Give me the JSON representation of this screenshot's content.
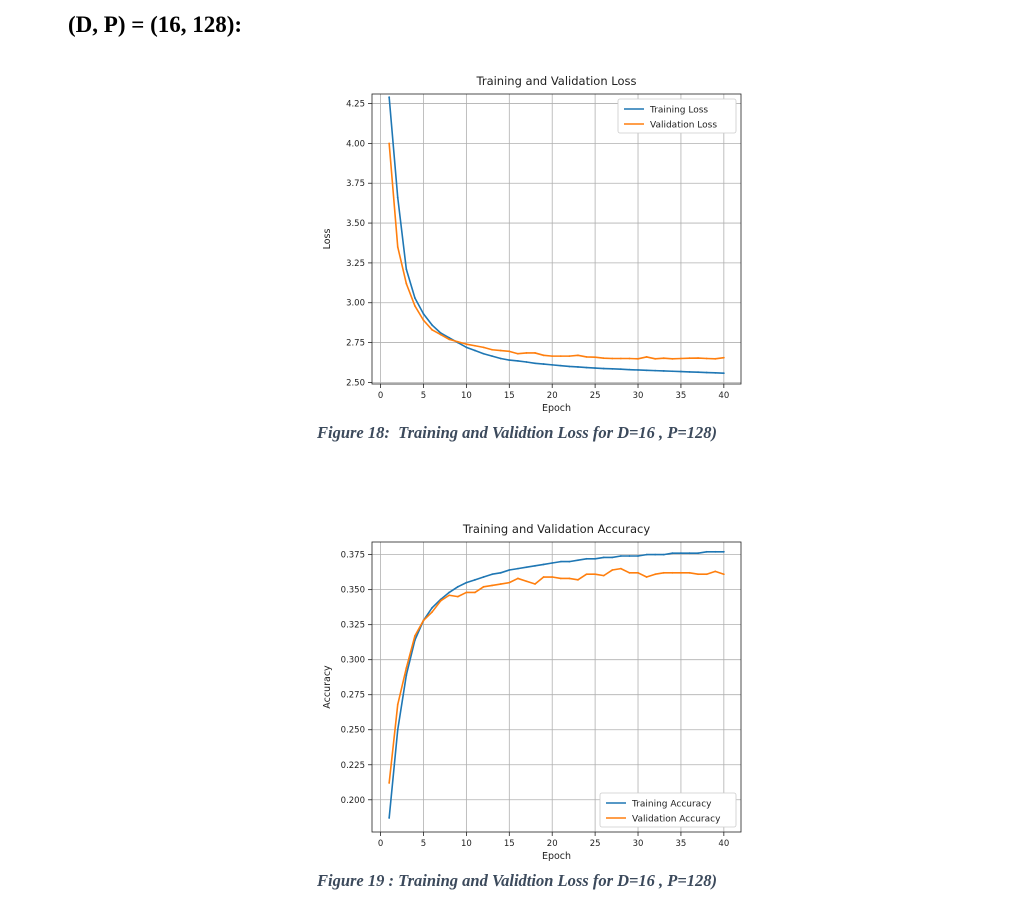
{
  "heading": "(D, P) = (16, 128):",
  "captions": {
    "fig18": "Figure 18:  Training and Validtion Loss for D=16 , P=128)",
    "fig19": "Figure 19 : Training and Validtion Loss for D=16 , P=128)"
  },
  "colors": {
    "train": "#1f77b4",
    "val": "#ff7f0e",
    "grid": "#b0b0b0"
  },
  "chart_data": [
    {
      "type": "line",
      "title": "Training and Validation Loss",
      "xlabel": "Epoch",
      "ylabel": "Loss",
      "xlim": [
        -1,
        42
      ],
      "ylim": [
        2.49,
        4.31
      ],
      "xticks": [
        0,
        5,
        10,
        15,
        20,
        25,
        30,
        35,
        40
      ],
      "xtick_labels": [
        "0",
        "5",
        "10",
        "15",
        "20",
        "25",
        "30",
        "35",
        "40"
      ],
      "yticks": [
        2.5,
        2.75,
        3.0,
        3.25,
        3.5,
        3.75,
        4.0,
        4.25
      ],
      "ytick_labels": [
        "2.50",
        "2.75",
        "3.00",
        "3.25",
        "3.50",
        "3.75",
        "4.00",
        "4.25"
      ],
      "grid": true,
      "legend_position": "top-right",
      "x": [
        1,
        2,
        3,
        4,
        5,
        6,
        7,
        8,
        9,
        10,
        11,
        12,
        13,
        14,
        15,
        16,
        17,
        18,
        19,
        20,
        21,
        22,
        23,
        24,
        25,
        26,
        27,
        28,
        29,
        30,
        31,
        32,
        33,
        34,
        35,
        36,
        37,
        38,
        39,
        40
      ],
      "series": [
        {
          "name": "Training Loss",
          "values": [
            4.29,
            3.66,
            3.21,
            3.03,
            2.93,
            2.86,
            2.81,
            2.78,
            2.75,
            2.72,
            2.7,
            2.68,
            2.665,
            2.65,
            2.64,
            2.635,
            2.628,
            2.62,
            2.615,
            2.61,
            2.605,
            2.6,
            2.597,
            2.593,
            2.59,
            2.587,
            2.585,
            2.583,
            2.58,
            2.578,
            2.576,
            2.574,
            2.572,
            2.57,
            2.568,
            2.566,
            2.564,
            2.562,
            2.56,
            2.558
          ]
        },
        {
          "name": "Validation Loss",
          "values": [
            4.0,
            3.35,
            3.12,
            2.98,
            2.89,
            2.83,
            2.8,
            2.77,
            2.755,
            2.74,
            2.73,
            2.72,
            2.705,
            2.7,
            2.695,
            2.68,
            2.685,
            2.685,
            2.67,
            2.665,
            2.665,
            2.665,
            2.67,
            2.66,
            2.658,
            2.652,
            2.65,
            2.65,
            2.65,
            2.648,
            2.66,
            2.648,
            2.652,
            2.648,
            2.65,
            2.652,
            2.653,
            2.65,
            2.648,
            2.655
          ]
        }
      ]
    },
    {
      "type": "line",
      "title": "Training and Validation Accuracy",
      "xlabel": "Epoch",
      "ylabel": "Accuracy",
      "xlim": [
        -1,
        42
      ],
      "ylim": [
        0.177,
        0.384
      ],
      "xticks": [
        0,
        5,
        10,
        15,
        20,
        25,
        30,
        35,
        40
      ],
      "xtick_labels": [
        "0",
        "5",
        "10",
        "15",
        "20",
        "25",
        "30",
        "35",
        "40"
      ],
      "yticks": [
        0.2,
        0.225,
        0.25,
        0.275,
        0.3,
        0.325,
        0.35,
        0.375
      ],
      "ytick_labels": [
        "0.200",
        "0.225",
        "0.250",
        "0.275",
        "0.300",
        "0.325",
        "0.350",
        "0.375"
      ],
      "grid": true,
      "legend_position": "bottom-right",
      "x": [
        1,
        2,
        3,
        4,
        5,
        6,
        7,
        8,
        9,
        10,
        11,
        12,
        13,
        14,
        15,
        16,
        17,
        18,
        19,
        20,
        21,
        22,
        23,
        24,
        25,
        26,
        27,
        28,
        29,
        30,
        31,
        32,
        33,
        34,
        35,
        36,
        37,
        38,
        39,
        40
      ],
      "series": [
        {
          "name": "Training Accuracy",
          "values": [
            0.187,
            0.25,
            0.289,
            0.314,
            0.328,
            0.337,
            0.343,
            0.348,
            0.352,
            0.355,
            0.357,
            0.359,
            0.361,
            0.362,
            0.364,
            0.365,
            0.366,
            0.367,
            0.368,
            0.369,
            0.37,
            0.37,
            0.371,
            0.372,
            0.372,
            0.373,
            0.373,
            0.374,
            0.374,
            0.374,
            0.375,
            0.375,
            0.375,
            0.376,
            0.376,
            0.376,
            0.376,
            0.377,
            0.377,
            0.377
          ]
        },
        {
          "name": "Validation Accuracy",
          "values": [
            0.212,
            0.268,
            0.294,
            0.317,
            0.328,
            0.334,
            0.342,
            0.346,
            0.345,
            0.348,
            0.348,
            0.352,
            0.353,
            0.354,
            0.355,
            0.358,
            0.356,
            0.354,
            0.359,
            0.359,
            0.358,
            0.358,
            0.357,
            0.361,
            0.361,
            0.36,
            0.364,
            0.365,
            0.362,
            0.362,
            0.359,
            0.361,
            0.362,
            0.362,
            0.362,
            0.362,
            0.361,
            0.361,
            0.363,
            0.361
          ]
        }
      ]
    }
  ]
}
